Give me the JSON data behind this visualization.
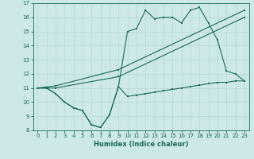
{
  "xlabel": "Humidex (Indice chaleur)",
  "bg_color": "#cce8e8",
  "line_color": "#1a6b5a",
  "grid_color": "#b8d8d8",
  "xlim": [
    -0.5,
    23.5
  ],
  "ylim": [
    8,
    17
  ],
  "yticks": [
    8,
    9,
    10,
    11,
    12,
    13,
    14,
    15,
    16,
    17
  ],
  "xticks": [
    0,
    1,
    2,
    3,
    4,
    5,
    6,
    7,
    8,
    9,
    10,
    11,
    12,
    13,
    14,
    15,
    16,
    17,
    18,
    19,
    20,
    21,
    22,
    23
  ],
  "line1_x": [
    0,
    1,
    2,
    3,
    4,
    5,
    6,
    7,
    8,
    9,
    10,
    11,
    12,
    13,
    14,
    15,
    16,
    17,
    18,
    19,
    20,
    21,
    22,
    23
  ],
  "line1_y": [
    11.0,
    11.0,
    10.6,
    10.0,
    9.6,
    9.4,
    8.4,
    8.2,
    9.1,
    11.1,
    10.4,
    10.5,
    10.6,
    10.7,
    10.8,
    10.9,
    11.0,
    11.1,
    11.2,
    11.3,
    11.4,
    11.4,
    11.5,
    11.5
  ],
  "line2_x": [
    0,
    2,
    9,
    23
  ],
  "line2_y": [
    11.0,
    11.0,
    11.8,
    16.0
  ],
  "line3_x": [
    0,
    2,
    9,
    23
  ],
  "line3_y": [
    11.0,
    11.15,
    12.3,
    16.5
  ],
  "line4_x": [
    0,
    1,
    2,
    3,
    4,
    5,
    6,
    7,
    8,
    9,
    10,
    11,
    12,
    13,
    14,
    15,
    16,
    17,
    18,
    19,
    20,
    21,
    22,
    23
  ],
  "line4_y": [
    11.0,
    11.0,
    10.6,
    10.0,
    9.6,
    9.4,
    8.4,
    8.2,
    9.1,
    11.1,
    15.0,
    15.2,
    16.5,
    15.9,
    16.0,
    16.0,
    15.6,
    16.5,
    16.7,
    15.6,
    14.4,
    12.2,
    12.0,
    11.5
  ],
  "figsize": [
    3.2,
    2.0
  ],
  "dpi": 100
}
